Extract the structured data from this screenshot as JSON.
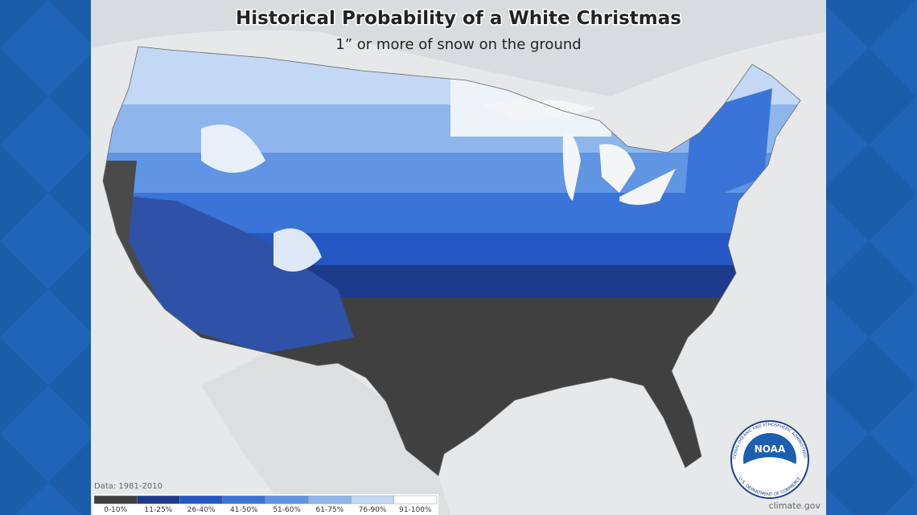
{
  "header": {
    "title": "Historical Probability of a White Christmas",
    "subtitle": "1” or more of snow on the ground"
  },
  "legend": {
    "items": [
      {
        "label": "0-10%",
        "color": "#404040"
      },
      {
        "label": "11-25%",
        "color": "#1e3a8a"
      },
      {
        "label": "26-40%",
        "color": "#2456c4"
      },
      {
        "label": "41-50%",
        "color": "#3b74d8"
      },
      {
        "label": "51-60%",
        "color": "#5f95e3"
      },
      {
        "label": "61-75%",
        "color": "#8fb6ec"
      },
      {
        "label": "76-90%",
        "color": "#c2d8f4"
      },
      {
        "label": "91-100%",
        "color": "#ffffff"
      }
    ]
  },
  "footer": {
    "source": "Data: 1981-2010",
    "credit": "climate.gov"
  },
  "logo": {
    "name": "NOAA",
    "ring_top": "NATIONAL OCEANIC AND ATMOSPHERIC ADMINISTRATION",
    "ring_bottom": "U.S. DEPARTMENT OF COMMERCE"
  }
}
